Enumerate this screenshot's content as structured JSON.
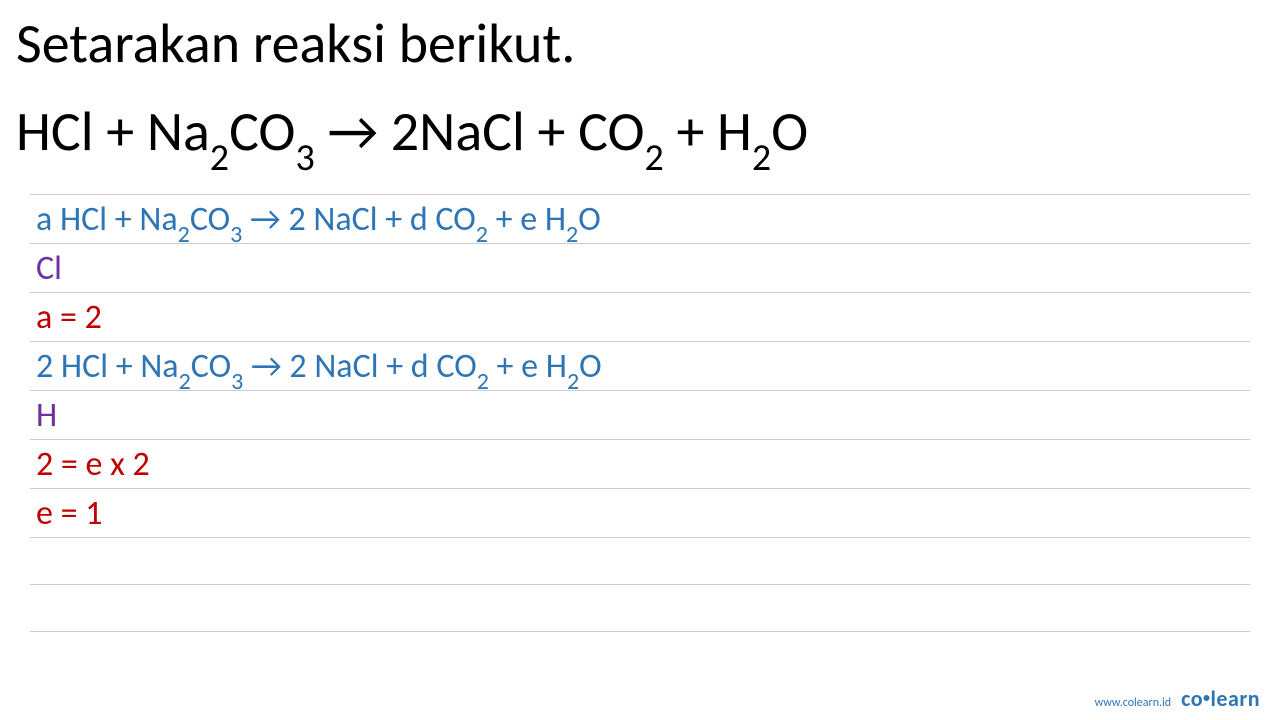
{
  "title": "Setarakan reaksi berikut.",
  "equation": {
    "parts": [
      "HCl + Na",
      "2",
      "CO",
      "3",
      " → 2NaCl + CO",
      "2",
      " + H",
      "2",
      "O"
    ]
  },
  "lines": [
    {
      "color": "blue",
      "parts": [
        "a HCl + Na",
        "2",
        "CO",
        "3",
        " → 2 NaCl + d CO",
        "2",
        " + e H",
        "2",
        "O"
      ]
    },
    {
      "color": "purple",
      "text": "Cl"
    },
    {
      "color": "darkred",
      "text": "a = 2"
    },
    {
      "color": "blue",
      "parts": [
        "2 HCl + Na",
        "2",
        "CO",
        "3",
        " → 2 NaCl + d CO",
        "2",
        " + e H",
        "2",
        "O"
      ]
    },
    {
      "color": "purple",
      "text": "H"
    },
    {
      "color": "darkred",
      "text": "2 = e  x 2"
    },
    {
      "color": "darkred",
      "text": "e = 1"
    }
  ],
  "footer": {
    "url": "www.colearn.id",
    "brand_left": "co",
    "brand_right": "learn"
  },
  "colors": {
    "blue": "#2e75b6",
    "purple": "#7030a0",
    "darkred": "#c00000",
    "black": "#000000",
    "bg": "#ffffff",
    "line": "#cccccc"
  }
}
